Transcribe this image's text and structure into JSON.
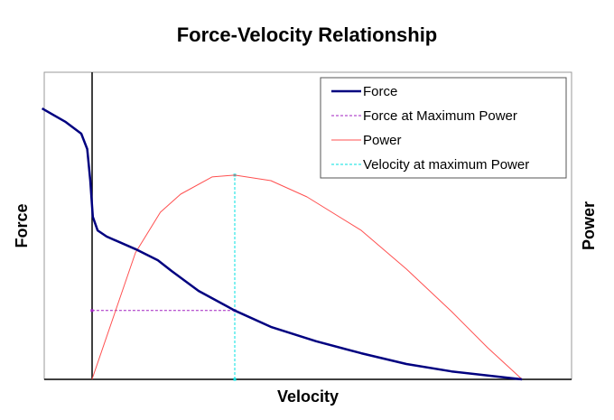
{
  "chart_data": {
    "type": "line",
    "title": "Force-Velocity Relationship",
    "xlabel": "Velocity",
    "ylabel": "Force",
    "y2label": "Power",
    "xlim": [
      -11.1,
      111.5
    ],
    "ylim": [
      0,
      100
    ],
    "grid": false,
    "tick_labels": false,
    "legend_position": "top-right",
    "series": [
      {
        "name": "Force",
        "color": "#000080",
        "style": "solid",
        "x": [
          -11.6,
          -6.1,
          -2.5,
          -1.1,
          -0.4,
          0.2,
          1.3,
          3.4,
          10.1,
          15.3,
          18.5,
          24.8,
          33.2,
          41.6,
          52.1,
          62.6,
          73.1,
          83.6,
          100
        ],
        "y": [
          88.2,
          83.8,
          80,
          75,
          64.7,
          52.9,
          48.5,
          46.5,
          42.4,
          38.8,
          35.3,
          28.8,
          22.4,
          17.1,
          12.4,
          8.5,
          5,
          2.6,
          0
        ]
      },
      {
        "name": "Force at Maximum Power",
        "color": "#a020c0",
        "style": "dotted",
        "x": [
          0,
          33.2
        ],
        "y": [
          22.4,
          22.4
        ]
      },
      {
        "name": "Power",
        "color": "#ff5050",
        "style": "solid",
        "axis": "right",
        "x": [
          0,
          10.1,
          15.9,
          20.6,
          27.9,
          33.2,
          41.6,
          50,
          62.6,
          73.1,
          83.6,
          92,
          100
        ],
        "y": [
          0,
          41.2,
          54.4,
          60.3,
          65.9,
          66.5,
          64.7,
          59.4,
          48.5,
          35.9,
          22.1,
          10.3,
          0
        ]
      },
      {
        "name": "Velocity at maximum Power",
        "color": "#00e0e0",
        "style": "dotted",
        "x": [
          33.2,
          33.2
        ],
        "y": [
          0,
          66.5
        ]
      }
    ]
  }
}
